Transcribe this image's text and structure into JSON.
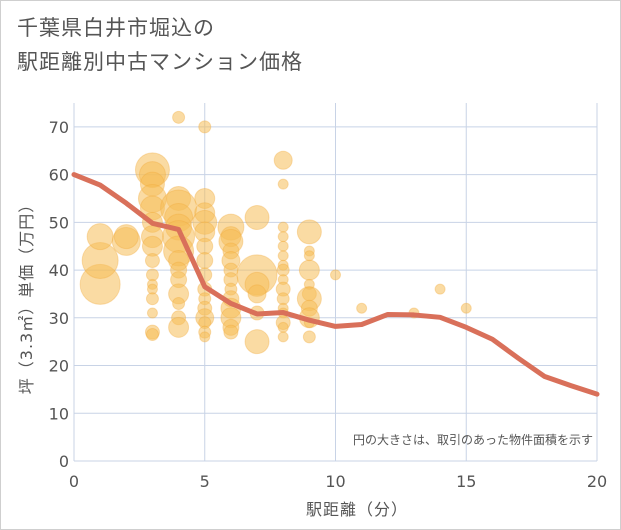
{
  "chart_data": {
    "type": "scatter",
    "title_lines": [
      "千葉県白井市堀込の",
      "駅距離別中古マンション価格"
    ],
    "xlabel": "駅距離（分）",
    "ylabel": "坪（3.3㎡）単価（万円）",
    "annotation": "円の大きさは、取引のあった物件面積を示す",
    "xlim": [
      0,
      20
    ],
    "ylim": [
      0,
      75
    ],
    "x_ticks": [
      0,
      5,
      10,
      15,
      20
    ],
    "y_ticks": [
      0,
      10,
      20,
      30,
      40,
      50,
      60,
      70
    ],
    "grid": true,
    "colors": {
      "bubble": "#f5bd57",
      "line": "#d9705a",
      "grid": "#c8d3e6",
      "axis_text": "#555555"
    },
    "bubbles": [
      {
        "x": 1,
        "y": 37,
        "r": 20
      },
      {
        "x": 1,
        "y": 42,
        "r": 18
      },
      {
        "x": 1,
        "y": 47,
        "r": 13
      },
      {
        "x": 2,
        "y": 46,
        "r": 14
      },
      {
        "x": 2,
        "y": 47,
        "r": 12
      },
      {
        "x": 3,
        "y": 61,
        "r": 17
      },
      {
        "x": 3,
        "y": 60,
        "r": 13
      },
      {
        "x": 3,
        "y": 58,
        "r": 12
      },
      {
        "x": 3,
        "y": 55,
        "r": 14
      },
      {
        "x": 3,
        "y": 53,
        "r": 12
      },
      {
        "x": 3,
        "y": 50,
        "r": 10
      },
      {
        "x": 3,
        "y": 47,
        "r": 11
      },
      {
        "x": 3,
        "y": 45,
        "r": 10
      },
      {
        "x": 3,
        "y": 42,
        "r": 7
      },
      {
        "x": 3,
        "y": 39,
        "r": 6
      },
      {
        "x": 3,
        "y": 37,
        "r": 5
      },
      {
        "x": 3,
        "y": 36,
        "r": 5
      },
      {
        "x": 3,
        "y": 34,
        "r": 6
      },
      {
        "x": 3,
        "y": 31,
        "r": 5
      },
      {
        "x": 3,
        "y": 27,
        "r": 7
      },
      {
        "x": 3,
        "y": 26.5,
        "r": 6
      },
      {
        "x": 4,
        "y": 72,
        "r": 6
      },
      {
        "x": 4,
        "y": 55,
        "r": 12
      },
      {
        "x": 4,
        "y": 53,
        "r": 18
      },
      {
        "x": 4,
        "y": 51,
        "r": 14
      },
      {
        "x": 4,
        "y": 49,
        "r": 13
      },
      {
        "x": 4,
        "y": 47,
        "r": 16
      },
      {
        "x": 4,
        "y": 44,
        "r": 15
      },
      {
        "x": 4,
        "y": 42,
        "r": 10
      },
      {
        "x": 4,
        "y": 40,
        "r": 8
      },
      {
        "x": 4,
        "y": 38,
        "r": 8
      },
      {
        "x": 4,
        "y": 35,
        "r": 10
      },
      {
        "x": 4,
        "y": 33,
        "r": 6
      },
      {
        "x": 4,
        "y": 30,
        "r": 7
      },
      {
        "x": 4,
        "y": 28,
        "r": 10
      },
      {
        "x": 5,
        "y": 70,
        "r": 6
      },
      {
        "x": 5,
        "y": 55,
        "r": 10
      },
      {
        "x": 5,
        "y": 52,
        "r": 10
      },
      {
        "x": 5,
        "y": 50,
        "r": 12
      },
      {
        "x": 5,
        "y": 48,
        "r": 10
      },
      {
        "x": 5,
        "y": 45,
        "r": 8
      },
      {
        "x": 5,
        "y": 42,
        "r": 8
      },
      {
        "x": 5,
        "y": 39,
        "r": 7
      },
      {
        "x": 5,
        "y": 36,
        "r": 7
      },
      {
        "x": 5,
        "y": 34,
        "r": 6
      },
      {
        "x": 5,
        "y": 32,
        "r": 7
      },
      {
        "x": 5,
        "y": 30,
        "r": 9
      },
      {
        "x": 5,
        "y": 29,
        "r": 6
      },
      {
        "x": 5,
        "y": 27,
        "r": 6
      },
      {
        "x": 5,
        "y": 26,
        "r": 5
      },
      {
        "x": 6,
        "y": 49,
        "r": 13
      },
      {
        "x": 6,
        "y": 47,
        "r": 10
      },
      {
        "x": 6,
        "y": 46,
        "r": 12
      },
      {
        "x": 6,
        "y": 44,
        "r": 8
      },
      {
        "x": 6,
        "y": 42,
        "r": 9
      },
      {
        "x": 6,
        "y": 40,
        "r": 7
      },
      {
        "x": 6,
        "y": 38,
        "r": 7
      },
      {
        "x": 6,
        "y": 36,
        "r": 6
      },
      {
        "x": 6,
        "y": 34,
        "r": 8
      },
      {
        "x": 6,
        "y": 32,
        "r": 10
      },
      {
        "x": 6,
        "y": 30,
        "r": 10
      },
      {
        "x": 6,
        "y": 28,
        "r": 8
      },
      {
        "x": 6,
        "y": 27,
        "r": 7
      },
      {
        "x": 7,
        "y": 51,
        "r": 12
      },
      {
        "x": 7,
        "y": 39,
        "r": 20
      },
      {
        "x": 7,
        "y": 37,
        "r": 12
      },
      {
        "x": 7,
        "y": 35,
        "r": 9
      },
      {
        "x": 7,
        "y": 31,
        "r": 7
      },
      {
        "x": 7,
        "y": 25,
        "r": 12
      },
      {
        "x": 8,
        "y": 63,
        "r": 9
      },
      {
        "x": 8,
        "y": 58,
        "r": 5
      },
      {
        "x": 8,
        "y": 49,
        "r": 5
      },
      {
        "x": 8,
        "y": 47,
        "r": 5
      },
      {
        "x": 8,
        "y": 45,
        "r": 5
      },
      {
        "x": 8,
        "y": 43,
        "r": 5
      },
      {
        "x": 8,
        "y": 41,
        "r": 5
      },
      {
        "x": 8,
        "y": 40,
        "r": 6
      },
      {
        "x": 8,
        "y": 38,
        "r": 5
      },
      {
        "x": 8,
        "y": 36,
        "r": 7
      },
      {
        "x": 8,
        "y": 34,
        "r": 6
      },
      {
        "x": 8,
        "y": 32,
        "r": 5
      },
      {
        "x": 8,
        "y": 31,
        "r": 5
      },
      {
        "x": 8,
        "y": 29,
        "r": 7
      },
      {
        "x": 8,
        "y": 28,
        "r": 5
      },
      {
        "x": 8,
        "y": 26,
        "r": 5
      },
      {
        "x": 9,
        "y": 48,
        "r": 12
      },
      {
        "x": 9,
        "y": 44,
        "r": 5
      },
      {
        "x": 9,
        "y": 43,
        "r": 5
      },
      {
        "x": 9,
        "y": 40,
        "r": 10
      },
      {
        "x": 9,
        "y": 37,
        "r": 5
      },
      {
        "x": 9,
        "y": 35,
        "r": 7
      },
      {
        "x": 9,
        "y": 34,
        "r": 12
      },
      {
        "x": 9,
        "y": 32,
        "r": 8
      },
      {
        "x": 9,
        "y": 30,
        "r": 10
      },
      {
        "x": 9,
        "y": 29,
        "r": 5
      },
      {
        "x": 9,
        "y": 26,
        "r": 6
      },
      {
        "x": 10,
        "y": 39,
        "r": 5
      },
      {
        "x": 11,
        "y": 32,
        "r": 5
      },
      {
        "x": 13,
        "y": 31,
        "r": 5
      },
      {
        "x": 14,
        "y": 36,
        "r": 5
      },
      {
        "x": 15,
        "y": 32,
        "r": 5
      }
    ],
    "trend_line": {
      "x": [
        0,
        1,
        2,
        3,
        4,
        5,
        6,
        7,
        8,
        9,
        10,
        11,
        12,
        13,
        14,
        15,
        16,
        17,
        18,
        19,
        20
      ],
      "y": [
        60,
        57.8,
        54,
        49.8,
        48.5,
        36.5,
        33,
        30.8,
        31.1,
        29.5,
        28.2,
        28.6,
        30.7,
        30.6,
        30.1,
        28,
        25.5,
        21.5,
        17.7,
        15.8,
        14
      ]
    }
  }
}
